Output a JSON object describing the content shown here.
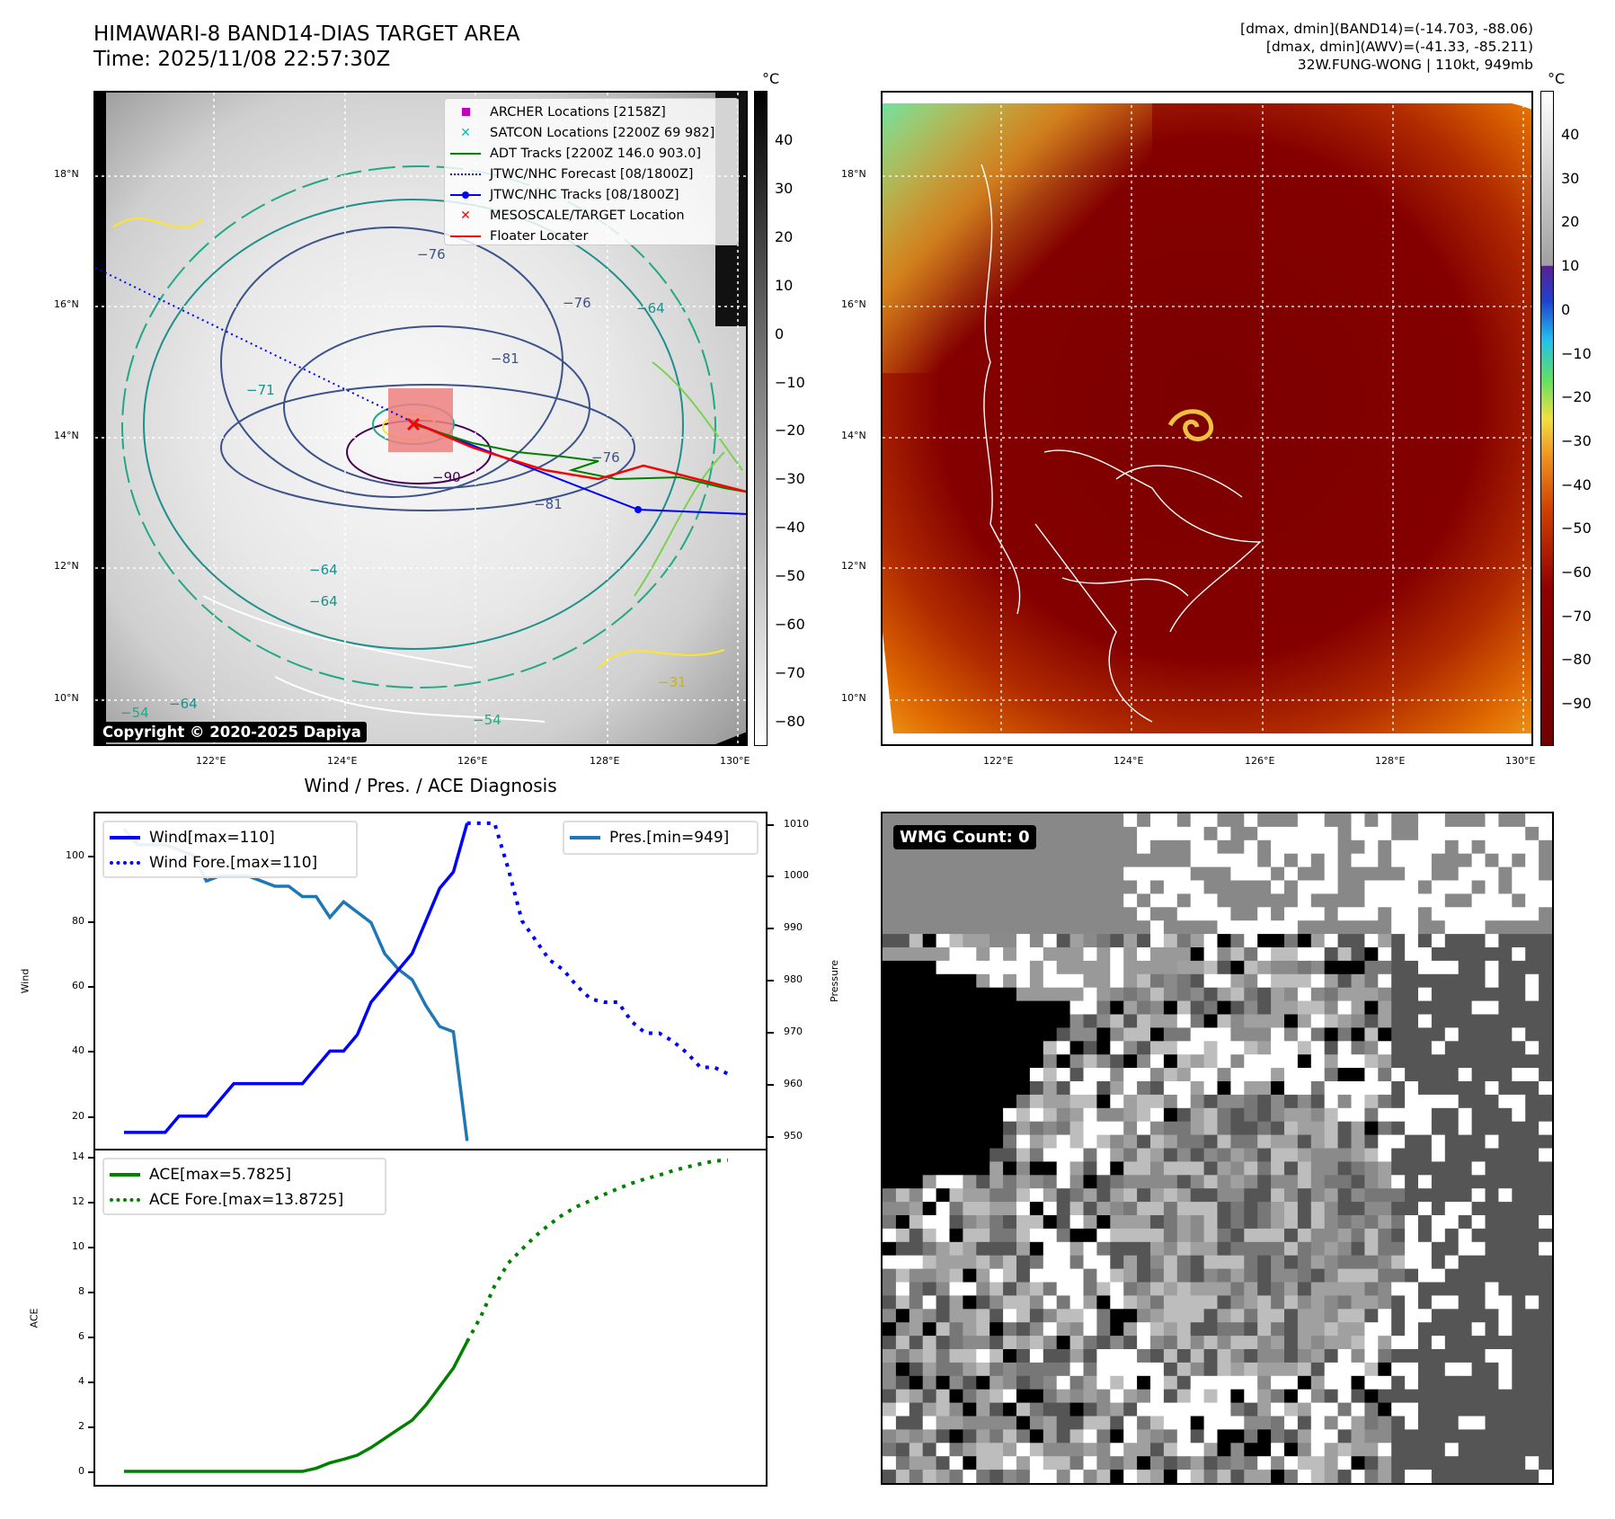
{
  "header": {
    "title_line1": "HIMAWARI-8 BAND14-DIAS TARGET AREA",
    "title_line2": "Time: 2025/11/08 22:57:30Z",
    "info_line1": "[dmax, dmin](BAND14)=(-14.703, -88.06)",
    "info_line2": "[dmax, dmin](AWV)=(-41.33, -85.211)",
    "info_line3": "32W.FUNG-WONG | 110kt, 949mb"
  },
  "map_ir": {
    "lat_ticks": [
      "18°N",
      "16°N",
      "14°N",
      "12°N",
      "10°N"
    ],
    "lon_ticks": [
      "122°E",
      "124°E",
      "126°E",
      "128°E",
      "130°E"
    ],
    "colorbar_unit": "°C",
    "colorbar_ticks": [
      "40",
      "30",
      "20",
      "10",
      "0",
      "−10",
      "−20",
      "−30",
      "−40",
      "−50",
      "−60",
      "−70",
      "−80"
    ],
    "copyright": "Copyright © 2020-2025 Dapiya",
    "contour_labels": [
      "−76",
      "−76",
      "−81",
      "−90",
      "−81",
      "−76",
      "−64",
      "−64",
      "−64",
      "−54",
      "−64",
      "−31",
      "−71",
      "−54"
    ],
    "legend": [
      {
        "label": "ARCHER Locations [2158Z]",
        "symbol": "square",
        "color": "#c000c0"
      },
      {
        "label": "SATCON Locations [2200Z 69 982]",
        "symbol": "x",
        "color": "#00c0c0"
      },
      {
        "label": "ADT Tracks [2200Z 146.0 903.0]",
        "symbol": "line",
        "color": "#008000"
      },
      {
        "label": "JTWC/NHC Forecast [08/1800Z]",
        "symbol": "dotted",
        "color": "#0000ff"
      },
      {
        "label": "JTWC/NHC Tracks [08/1800Z]",
        "symbol": "line-dot",
        "color": "#0000ff"
      },
      {
        "label": "MESOSCALE/TARGET Location",
        "symbol": "x",
        "color": "#ff0000"
      },
      {
        "label": "Floater Locater",
        "symbol": "line",
        "color": "#ff0000"
      }
    ]
  },
  "map_awv": {
    "lat_ticks": [
      "18°N",
      "16°N",
      "14°N",
      "12°N",
      "10°N"
    ],
    "lon_ticks": [
      "122°E",
      "124°E",
      "126°E",
      "128°E",
      "130°E"
    ],
    "colorbar_unit": "°C",
    "colorbar_ticks": [
      "40",
      "30",
      "20",
      "10",
      "0",
      "−10",
      "−20",
      "−30",
      "−40",
      "−50",
      "−60",
      "−70",
      "−80",
      "−90"
    ]
  },
  "wmg": {
    "label": "WMG Count: 0"
  },
  "chart_data": [
    {
      "type": "line",
      "title": "Wind / Pres. / ACE Diagnosis",
      "ylabel": "Wind",
      "ylabel_right": "Pressure",
      "ylim": [
        10,
        113
      ],
      "ylim_right": [
        947.5,
        1012
      ],
      "yticks": [
        20,
        40,
        60,
        80,
        100
      ],
      "yticks_right": [
        950,
        960,
        970,
        980,
        990,
        1000,
        1010
      ],
      "series": [
        {
          "name": "Wind[max=110]",
          "axis": "left",
          "style": "solid",
          "color": "#0000ff",
          "x_start": 0,
          "values": [
            15,
            15,
            15,
            15,
            20,
            20,
            20,
            25,
            30,
            30,
            30,
            30,
            30,
            30,
            35,
            40,
            40,
            45,
            55,
            60,
            65,
            70,
            80,
            90,
            95,
            110
          ]
        },
        {
          "name": "Wind Fore.[max=110]",
          "axis": "left",
          "style": "dotted",
          "color": "#0000ff",
          "x_start": 25,
          "values": [
            110,
            110,
            110,
            96,
            80,
            74,
            68,
            65,
            60,
            56,
            55,
            55,
            49,
            45.5,
            45.5,
            43,
            39.5,
            35,
            35,
            33
          ]
        },
        {
          "name": "Pres.[min=949]",
          "axis": "right",
          "style": "solid",
          "color": "#1f77b4",
          "x_start": 0,
          "values": [
            1009,
            1006,
            1006,
            1006,
            1005,
            1004,
            999,
            1000,
            1000,
            1000,
            999,
            998,
            998,
            996,
            996,
            992,
            995,
            993,
            991,
            985,
            982,
            980,
            975,
            971,
            970,
            949
          ]
        }
      ]
    },
    {
      "type": "line",
      "ylabel": "ACE",
      "ylim": [
        -0.6,
        14.3
      ],
      "yticks": [
        0,
        2,
        4,
        6,
        8,
        10,
        12,
        14
      ],
      "series": [
        {
          "name": "ACE[max=5.7825]",
          "style": "solid",
          "color": "#008000",
          "x_start": 0,
          "values": [
            0,
            0,
            0,
            0,
            0,
            0,
            0,
            0,
            0,
            0,
            0,
            0,
            0,
            0,
            0.14,
            0.38,
            0.54,
            0.72,
            1.06,
            1.47,
            1.88,
            2.28,
            2.96,
            3.78,
            4.6,
            5.78
          ]
        },
        {
          "name": "ACE Fore.[max=13.8725]",
          "style": "dotted",
          "color": "#008000",
          "x_start": 25,
          "values": [
            5.78,
            6.9,
            8.26,
            9.28,
            9.9,
            10.5,
            11.0,
            11.45,
            11.8,
            12.07,
            12.34,
            12.6,
            12.84,
            13.04,
            13.2,
            13.4,
            13.56,
            13.7,
            13.83,
            13.87
          ]
        }
      ]
    }
  ]
}
